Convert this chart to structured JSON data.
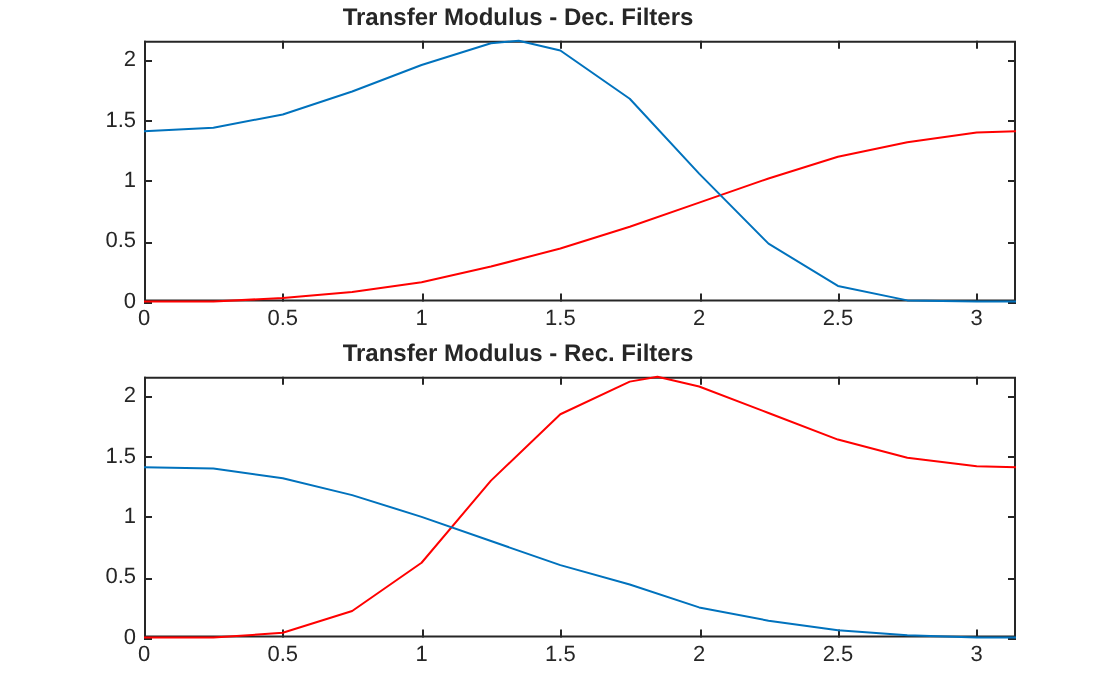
{
  "chart_data": [
    {
      "type": "line",
      "title": "Transfer Modulus - Dec. Filters",
      "xlim": [
        0,
        3.1416
      ],
      "xticks": [
        0,
        0.5,
        1,
        1.5,
        2,
        2.5,
        3
      ],
      "ylim": [
        0,
        2.16
      ],
      "yticks": [
        0,
        0.5,
        1,
        1.5,
        2
      ],
      "grid": false,
      "legend": false,
      "marker": "none",
      "line_style": "solid",
      "series": [
        {
          "color": "#0072bd",
          "x": [
            0,
            0.25,
            0.5,
            0.75,
            1,
            1.25,
            1.35,
            1.5,
            1.75,
            2,
            2.25,
            2.5,
            2.75,
            3,
            3.1416
          ],
          "values": [
            1.41,
            1.44,
            1.55,
            1.74,
            1.96,
            2.14,
            2.16,
            2.08,
            1.68,
            1.06,
            0.48,
            0.13,
            0.01,
            0,
            0
          ]
        },
        {
          "color": "#ff0000",
          "x": [
            0,
            0.25,
            0.5,
            0.75,
            1,
            1.25,
            1.5,
            1.75,
            2,
            2.25,
            2.5,
            2.75,
            3,
            3.1416
          ],
          "values": [
            0,
            0,
            0.03,
            0.08,
            0.16,
            0.29,
            0.44,
            0.62,
            0.82,
            1.02,
            1.2,
            1.32,
            1.4,
            1.41
          ]
        }
      ]
    },
    {
      "type": "line",
      "title": "Transfer Modulus - Rec. Filters",
      "xlim": [
        0,
        3.1416
      ],
      "xticks": [
        0,
        0.5,
        1,
        1.5,
        2,
        2.5,
        3
      ],
      "ylim": [
        0,
        2.16
      ],
      "yticks": [
        0,
        0.5,
        1,
        1.5,
        2
      ],
      "grid": false,
      "legend": false,
      "marker": "none",
      "line_style": "solid",
      "series": [
        {
          "color": "#0072bd",
          "x": [
            0,
            0.25,
            0.5,
            0.75,
            1,
            1.25,
            1.5,
            1.75,
            2,
            2.25,
            2.5,
            2.75,
            3,
            3.1416
          ],
          "values": [
            1.41,
            1.4,
            1.32,
            1.18,
            1,
            0.8,
            0.6,
            0.44,
            0.25,
            0.14,
            0.06,
            0.02,
            0,
            0
          ]
        },
        {
          "color": "#ff0000",
          "x": [
            0,
            0.25,
            0.5,
            0.75,
            1,
            1.25,
            1.5,
            1.75,
            1.85,
            2,
            2.25,
            2.5,
            2.75,
            3,
            3.1416
          ],
          "values": [
            0,
            0,
            0.04,
            0.22,
            0.62,
            1.3,
            1.85,
            2.12,
            2.16,
            2.08,
            1.86,
            1.64,
            1.49,
            1.42,
            1.41
          ]
        }
      ]
    }
  ]
}
